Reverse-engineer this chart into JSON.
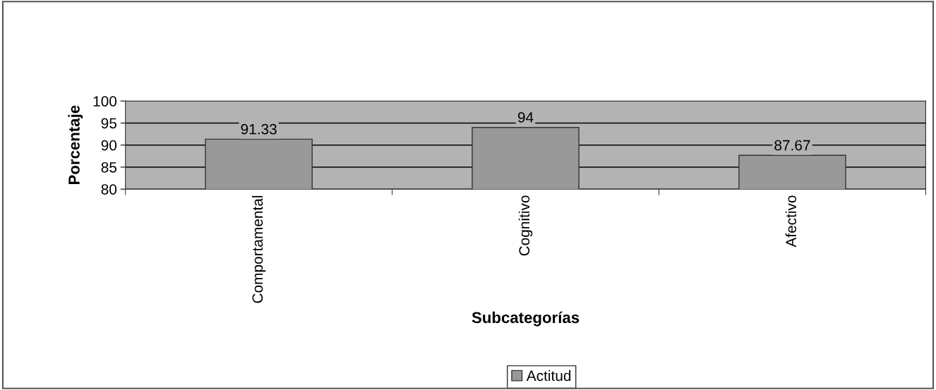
{
  "chart_data": {
    "type": "bar",
    "xlabel": "Subcategorías",
    "ylabel": "Porcentaje",
    "categories": [
      "Comportamental",
      "Cognitivo",
      "Afectivo"
    ],
    "series": [
      {
        "name": "Actitud",
        "color": "#999999",
        "values": [
          91.33,
          94,
          87.67
        ]
      }
    ],
    "ylim": [
      80,
      100
    ],
    "yticks": [
      80,
      85,
      90,
      95,
      100
    ],
    "grid": "y",
    "legend": "bottom",
    "data_labels": true
  }
}
